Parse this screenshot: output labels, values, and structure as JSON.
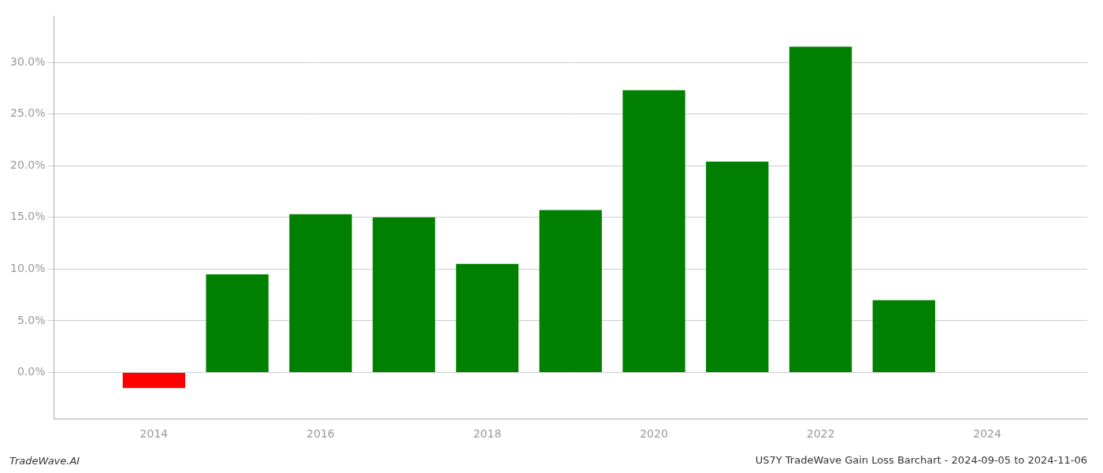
{
  "chart_data": {
    "type": "bar",
    "title": "US7Y TradeWave Gain Loss Barchart - 2024-09-05 to 2024-11-06",
    "annotations": [
      "TradeWave.AI"
    ],
    "x": [
      2014,
      2015,
      2016,
      2017,
      2018,
      2019,
      2020,
      2021,
      2022,
      2023
    ],
    "values": [
      -0.015,
      0.095,
      0.153,
      0.15,
      0.105,
      0.157,
      0.273,
      0.204,
      0.315,
      0.07
    ],
    "colors": [
      "#ff0000",
      "#008000",
      "#008000",
      "#008000",
      "#008000",
      "#008000",
      "#008000",
      "#008000",
      "#008000",
      "#008000"
    ],
    "xlim": [
      2012.8,
      2025.2
    ],
    "ylim": [
      -0.045,
      0.345
    ],
    "xticks": [
      2014,
      2016,
      2018,
      2020,
      2022,
      2024
    ],
    "yticks": [
      {
        "value": 0.0,
        "label": "0.0%"
      },
      {
        "value": 0.05,
        "label": "5.0%"
      },
      {
        "value": 0.1,
        "label": "10.0%"
      },
      {
        "value": 0.15,
        "label": "15.0%"
      },
      {
        "value": 0.2,
        "label": "20.0%"
      },
      {
        "value": 0.25,
        "label": "25.0%"
      },
      {
        "value": 0.3,
        "label": "30.0%"
      }
    ],
    "grid": true
  }
}
